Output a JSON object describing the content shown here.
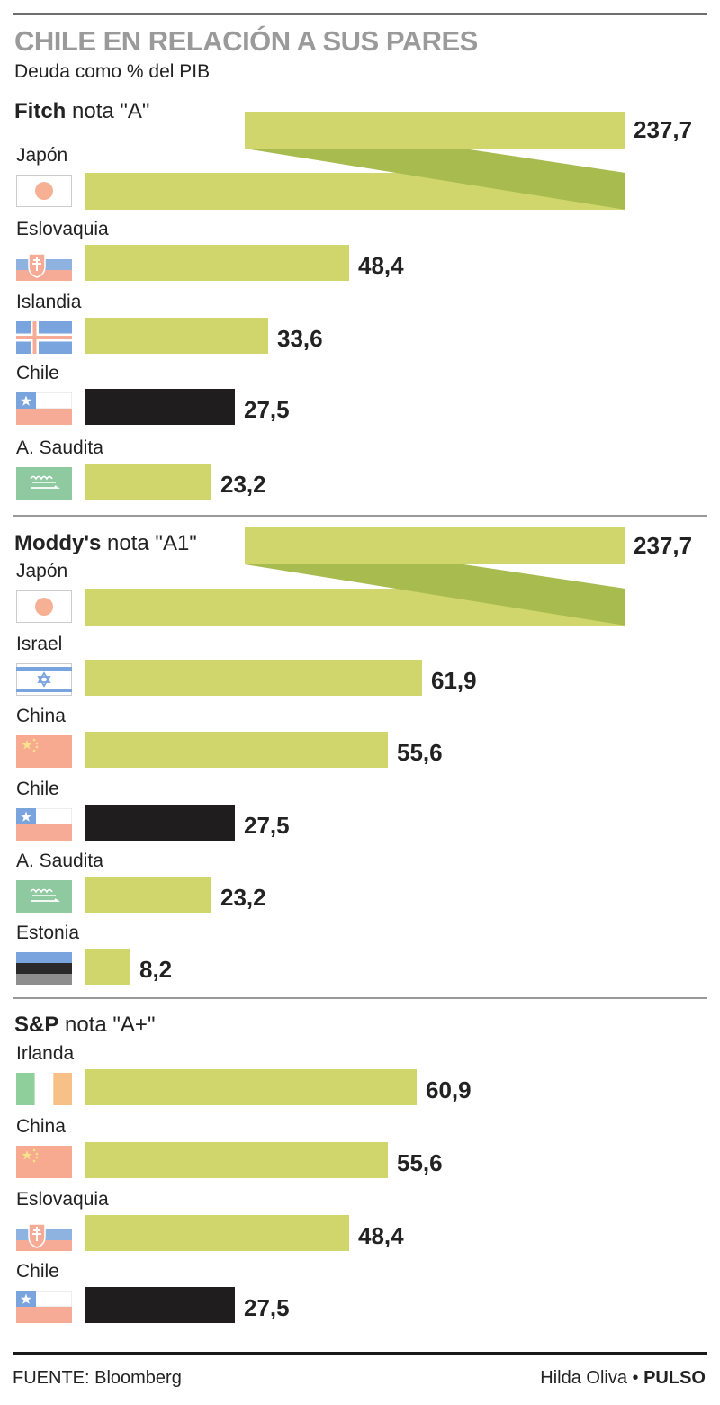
{
  "title": "CHILE EN RELACIÓN A SUS PARES",
  "subtitle": "Deuda como % del PIB",
  "colors": {
    "bar": "#d0d66c",
    "bar_fold": "#a7bb4e",
    "highlight": "#1f1d1e",
    "title": "#9a9a9a"
  },
  "chart_data": {
    "type": "bar",
    "orientation": "horizontal",
    "title": "CHILE EN RELACIÓN A SUS PARES",
    "subtitle": "Deuda como % del PIB",
    "highlight_category": "Chile",
    "panels": [
      {
        "agency": "Fitch",
        "rating_text": "nota \"A\"",
        "categories": [
          "Japón",
          "Eslovaquia",
          "Islandia",
          "Chile",
          "A. Saudita"
        ],
        "values": [
          237.7,
          48.4,
          33.6,
          27.5,
          23.2
        ],
        "labels": [
          "237,7",
          "48,4",
          "33,6",
          "27,5",
          "23,2"
        ],
        "flags": [
          "japan",
          "slovakia",
          "iceland",
          "chile",
          "saudi-arabia"
        ]
      },
      {
        "agency": "Moddy's",
        "rating_text": "nota \"A1\"",
        "categories": [
          "Japón",
          "Israel",
          "China",
          "Chile",
          "A. Saudita",
          "Estonia"
        ],
        "values": [
          237.7,
          61.9,
          55.6,
          27.5,
          23.2,
          8.2
        ],
        "labels": [
          "237,7",
          "61,9",
          "55,6",
          "27,5",
          "23,2",
          "8,2"
        ],
        "flags": [
          "japan",
          "israel",
          "china",
          "chile",
          "saudi-arabia",
          "estonia"
        ]
      },
      {
        "agency": "S&P",
        "rating_text": "nota \"A+\"",
        "categories": [
          "Irlanda",
          "China",
          "Eslovaquia",
          "Chile"
        ],
        "values": [
          60.9,
          55.6,
          48.4,
          27.5
        ],
        "labels": [
          "60,9",
          "55,6",
          "48,4",
          "27,5"
        ],
        "flags": [
          "ireland",
          "china",
          "slovakia",
          "chile"
        ]
      }
    ]
  },
  "footer": {
    "source": "FUENTE: Bloomberg",
    "author": "Hilda Oliva",
    "separator": "•",
    "brand": "PULSO"
  }
}
